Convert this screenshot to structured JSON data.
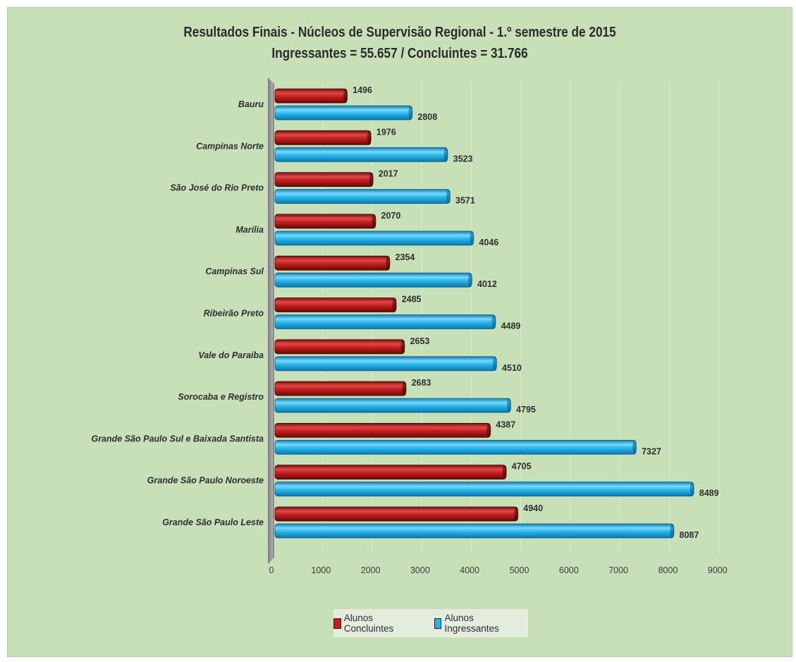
{
  "chart_data": {
    "type": "bar",
    "orientation": "horizontal",
    "title": "Resultados Finais - Núcleos de Supervisão Regional - 1.º semestre de 2015",
    "subtitle": "Ingressantes = 55.657 / Concluintes = 31.766",
    "categories": [
      "Bauru",
      "Campinas Norte",
      "São José do Rio Preto",
      "Marília",
      "Campinas Sul",
      "Ribeirão Preto",
      "Vale do Paraíba",
      "Sorocaba e Registro",
      "Grande São Paulo Sul e Baixada Santista",
      "Grande São Paulo Noroeste",
      "Grande São Paulo Leste"
    ],
    "series": [
      {
        "name": "Alunos Concluintes",
        "color": "#c61f1f",
        "values": [
          1496,
          1976,
          2017,
          2070,
          2354,
          2485,
          2653,
          2683,
          4387,
          4705,
          4940
        ]
      },
      {
        "name": "Alunos Ingressantes",
        "color": "#25b4ea",
        "values": [
          2808,
          3523,
          3571,
          4046,
          4012,
          4489,
          4510,
          4795,
          7327,
          8489,
          8087
        ]
      }
    ],
    "xlim": [
      0,
      9000
    ],
    "xticks": [
      0,
      1000,
      2000,
      3000,
      4000,
      5000,
      6000,
      7000,
      8000,
      9000
    ],
    "grid": true,
    "legend_position": "bottom"
  }
}
